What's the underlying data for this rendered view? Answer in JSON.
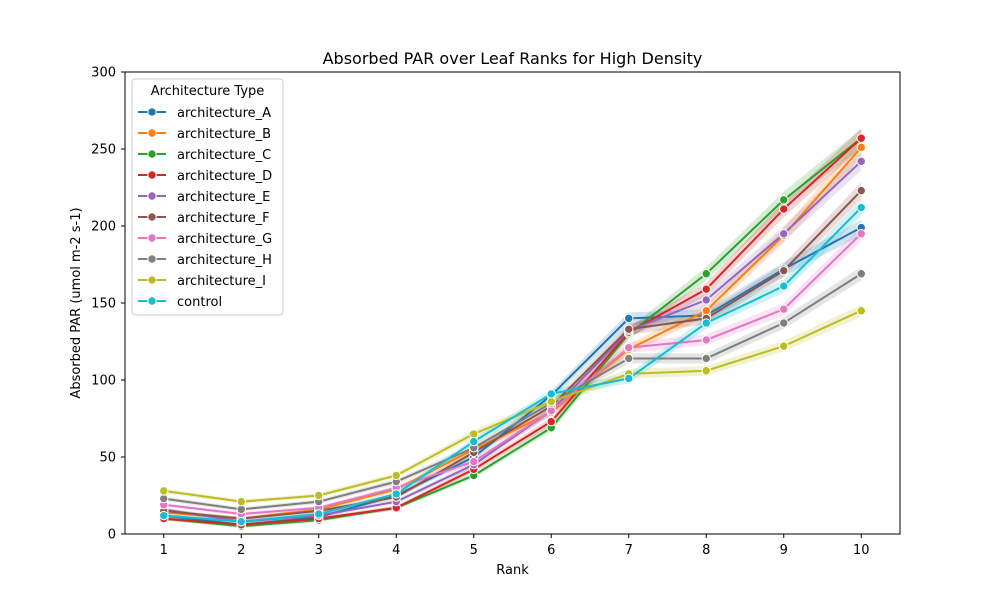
{
  "chart_data": {
    "type": "line",
    "title": "Absorbed PAR over Leaf Ranks for High Density",
    "xlabel": "Rank",
    "ylabel": "Absorbed PAR (umol m-2 s-1)",
    "x": [
      1,
      2,
      3,
      4,
      5,
      6,
      7,
      8,
      9,
      10
    ],
    "xlim": [
      0.5,
      10.5
    ],
    "ylim": [
      0,
      300
    ],
    "yticks": [
      0,
      50,
      100,
      150,
      200,
      250,
      300
    ],
    "legend_title": "Architecture Type",
    "legend_position": "top-left",
    "grid": false,
    "series": [
      {
        "name": "architecture_A",
        "color": "#1f77b4",
        "values": [
          12,
          6,
          11,
          25,
          50,
          90,
          140,
          142,
          172,
          199
        ]
      },
      {
        "name": "architecture_B",
        "color": "#ff7f0e",
        "values": [
          14,
          10,
          16,
          29,
          55,
          79,
          120,
          145,
          194,
          251
        ]
      },
      {
        "name": "architecture_C",
        "color": "#2ca02c",
        "values": [
          10,
          5,
          9,
          17,
          38,
          69,
          130,
          169,
          217,
          257
        ]
      },
      {
        "name": "architecture_D",
        "color": "#d62728",
        "values": [
          10,
          6,
          10,
          17,
          42,
          73,
          131,
          159,
          211,
          257
        ]
      },
      {
        "name": "architecture_E",
        "color": "#9467bd",
        "values": [
          16,
          8,
          12,
          21,
          45,
          80,
          132,
          152,
          195,
          242
        ]
      },
      {
        "name": "architecture_F",
        "color": "#8c564b",
        "values": [
          15,
          10,
          15,
          24,
          53,
          83,
          133,
          140,
          171,
          223
        ]
      },
      {
        "name": "architecture_G",
        "color": "#e377c2",
        "values": [
          19,
          13,
          17,
          30,
          47,
          80,
          121,
          126,
          146,
          195
        ]
      },
      {
        "name": "architecture_H",
        "color": "#7f7f7f",
        "values": [
          23,
          16,
          21,
          34,
          56,
          85,
          114,
          114,
          137,
          169
        ]
      },
      {
        "name": "architecture_I",
        "color": "#bcbd22",
        "values": [
          28,
          21,
          25,
          38,
          65,
          86,
          104,
          106,
          122,
          145
        ]
      },
      {
        "name": "control",
        "color": "#17becf",
        "values": [
          12,
          8,
          13,
          26,
          60,
          91,
          101,
          137,
          161,
          212
        ]
      }
    ]
  }
}
